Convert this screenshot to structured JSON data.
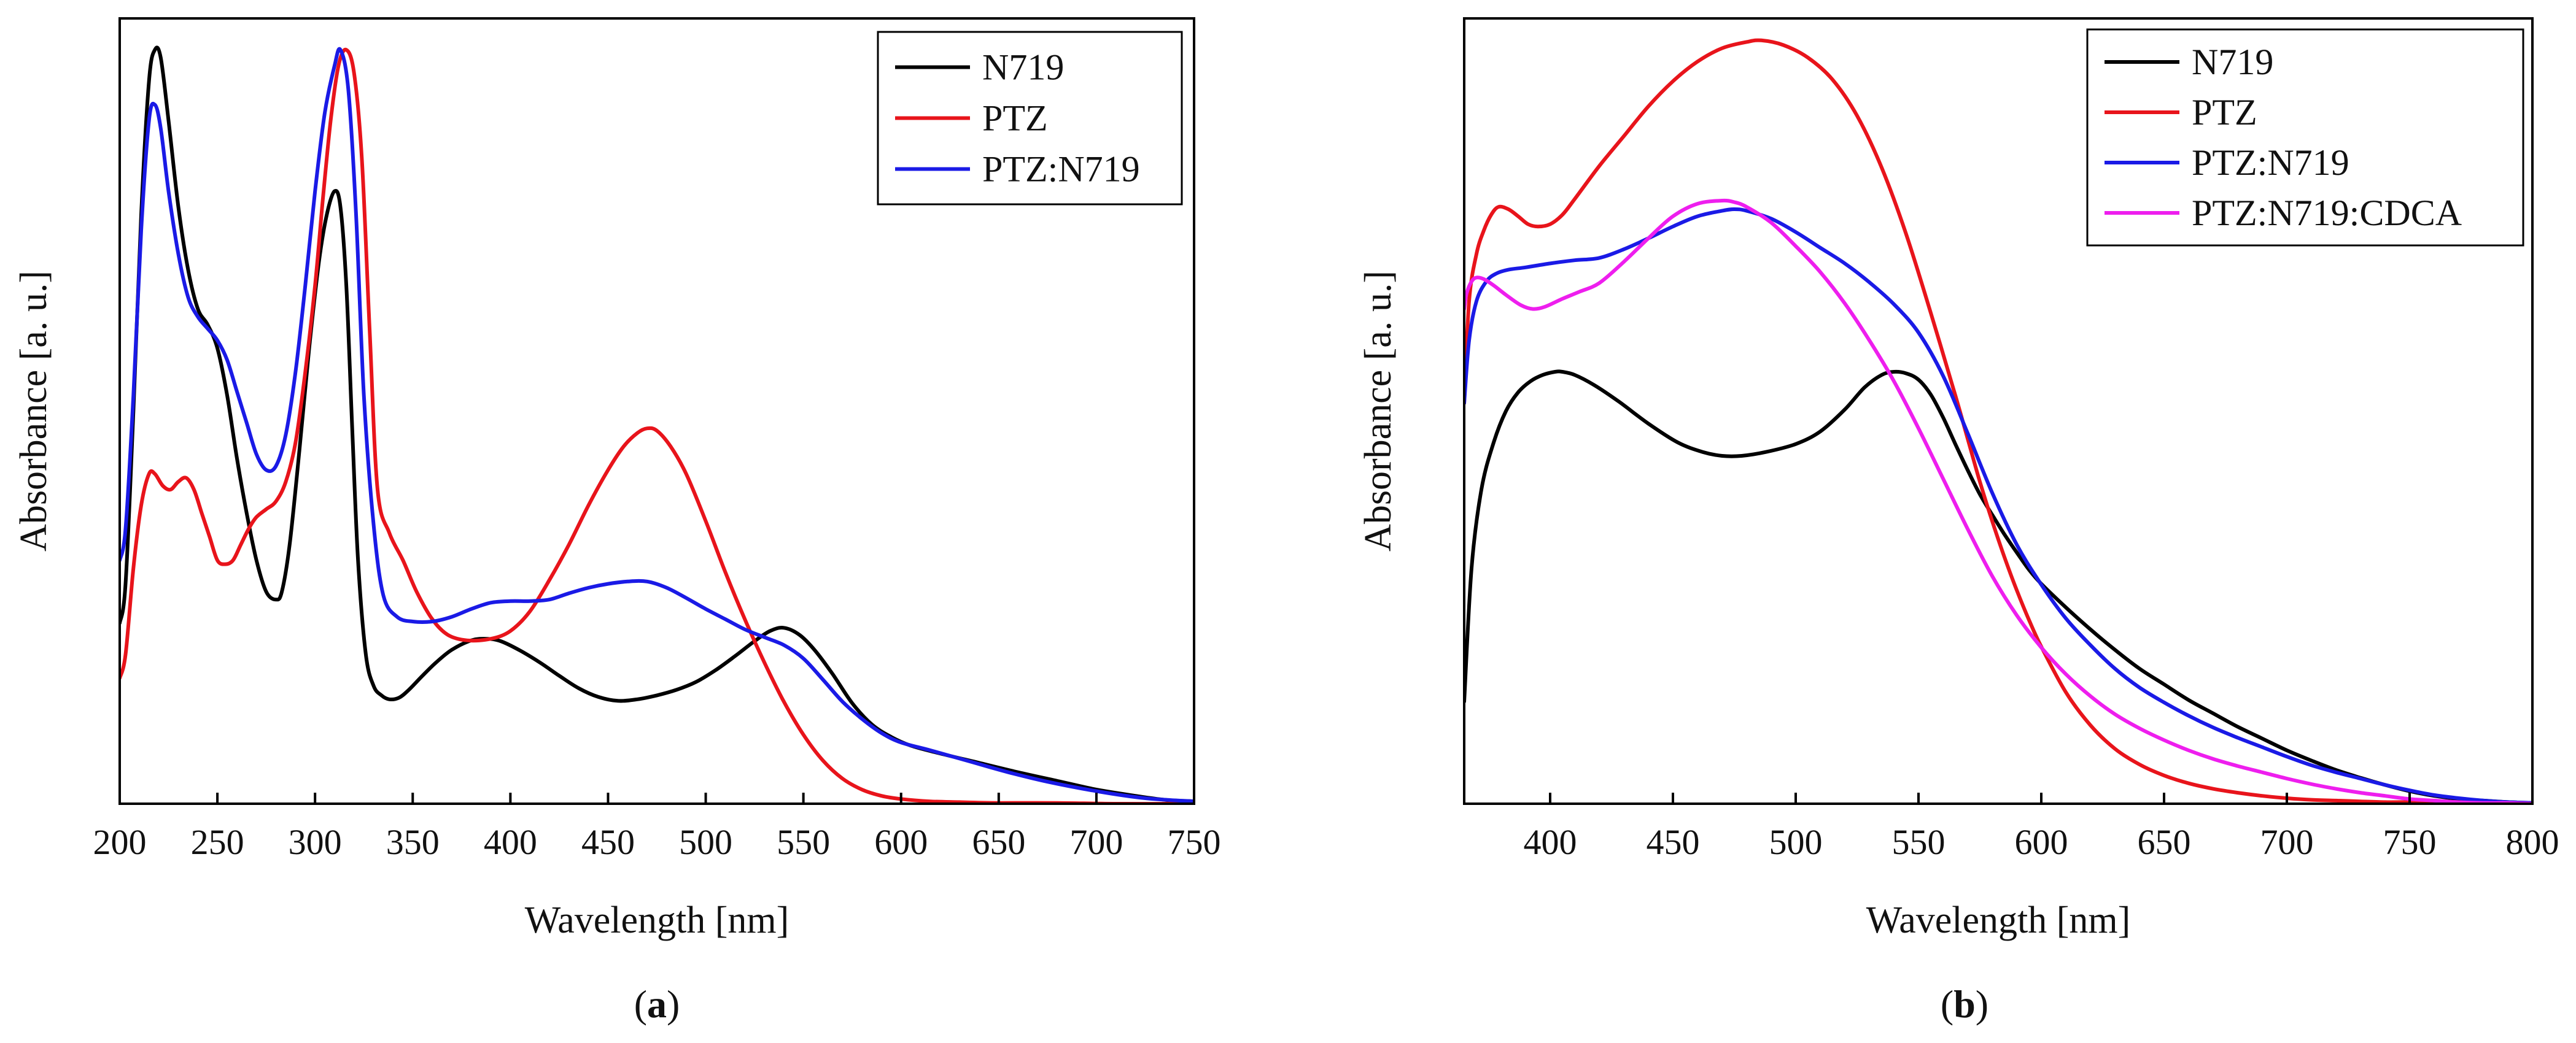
{
  "chart_data": [
    {
      "type": "line",
      "panel_label": "a",
      "title": "",
      "xlabel": "Wavelength [nm]",
      "ylabel": "Absorbance [a. u.]",
      "xlim": [
        200,
        750
      ],
      "ylim": [
        0,
        1.0
      ],
      "xticks": [
        200,
        250,
        300,
        350,
        400,
        450,
        500,
        550,
        600,
        650,
        700,
        750
      ],
      "show_yticks": false,
      "legend_position": "top-right",
      "series": [
        {
          "name": "N719",
          "color": "#000000",
          "x": [
            200,
            203,
            207,
            211,
            215,
            218,
            221,
            225,
            230,
            235,
            240,
            245,
            250,
            255,
            260,
            265,
            270,
            275,
            280,
            283,
            287,
            292,
            297,
            302,
            306,
            310,
            313,
            316,
            319,
            322,
            326,
            330,
            334,
            338,
            343,
            348,
            355,
            362,
            370,
            380,
            388,
            395,
            405,
            415,
            425,
            435,
            445,
            455,
            465,
            475,
            485,
            495,
            505,
            515,
            525,
            533,
            540,
            548,
            556,
            565,
            575,
            585,
            595,
            605,
            620,
            640,
            660,
            680,
            700,
            720,
            735,
            750
          ],
          "y": [
            0.23,
            0.28,
            0.5,
            0.75,
            0.92,
            0.96,
            0.95,
            0.87,
            0.76,
            0.68,
            0.63,
            0.61,
            0.58,
            0.52,
            0.44,
            0.37,
            0.31,
            0.27,
            0.26,
            0.27,
            0.33,
            0.45,
            0.58,
            0.69,
            0.75,
            0.78,
            0.76,
            0.66,
            0.48,
            0.31,
            0.19,
            0.15,
            0.138,
            0.133,
            0.135,
            0.145,
            0.163,
            0.18,
            0.196,
            0.208,
            0.21,
            0.207,
            0.195,
            0.18,
            0.163,
            0.147,
            0.136,
            0.131,
            0.133,
            0.138,
            0.145,
            0.155,
            0.17,
            0.188,
            0.207,
            0.22,
            0.224,
            0.215,
            0.195,
            0.165,
            0.128,
            0.101,
            0.085,
            0.074,
            0.064,
            0.052,
            0.04,
            0.029,
            0.018,
            0.01,
            0.005,
            0.003
          ]
        },
        {
          "name": "PTZ",
          "color": "#e8141b",
          "x": [
            200,
            203,
            207,
            211,
            215,
            218,
            222,
            226,
            230,
            234,
            238,
            242,
            246,
            250,
            254,
            258,
            262,
            266,
            270,
            275,
            280,
            285,
            290,
            295,
            300,
            304,
            308,
            312,
            316,
            320,
            324,
            328,
            332,
            338,
            345,
            352,
            360,
            368,
            378,
            390,
            400,
            410,
            420,
            430,
            440,
            450,
            458,
            465,
            470,
            475,
            482,
            490,
            500,
            510,
            520,
            530,
            540,
            550,
            560,
            570,
            580,
            590,
            600,
            615,
            630,
            650,
            680,
            710,
            750
          ],
          "y": [
            0.16,
            0.19,
            0.3,
            0.38,
            0.42,
            0.42,
            0.405,
            0.4,
            0.41,
            0.415,
            0.4,
            0.37,
            0.34,
            0.31,
            0.305,
            0.31,
            0.33,
            0.35,
            0.365,
            0.375,
            0.385,
            0.41,
            0.46,
            0.55,
            0.66,
            0.77,
            0.87,
            0.94,
            0.96,
            0.93,
            0.82,
            0.6,
            0.4,
            0.345,
            0.31,
            0.27,
            0.235,
            0.215,
            0.208,
            0.21,
            0.22,
            0.245,
            0.285,
            0.33,
            0.38,
            0.425,
            0.455,
            0.472,
            0.478,
            0.475,
            0.455,
            0.42,
            0.36,
            0.295,
            0.235,
            0.18,
            0.13,
            0.088,
            0.055,
            0.032,
            0.018,
            0.01,
            0.006,
            0.003,
            0.002,
            0.001,
            0.001,
            0.0,
            0.0
          ]
        },
        {
          "name": "PTZ:N719",
          "color": "#1a1ae6",
          "x": [
            200,
            203,
            207,
            211,
            215,
            218,
            221,
            225,
            230,
            235,
            240,
            245,
            250,
            255,
            260,
            265,
            270,
            275,
            280,
            285,
            290,
            295,
            300,
            305,
            310,
            313,
            317,
            321,
            325,
            330,
            335,
            342,
            350,
            360,
            370,
            380,
            390,
            400,
            410,
            420,
            430,
            440,
            450,
            460,
            470,
            480,
            490,
            500,
            510,
            520,
            530,
            540,
            550,
            560,
            570,
            580,
            590,
            600,
            615,
            635,
            655,
            675,
            700,
            725,
            750
          ],
          "y": [
            0.31,
            0.35,
            0.52,
            0.73,
            0.87,
            0.89,
            0.86,
            0.78,
            0.7,
            0.645,
            0.62,
            0.605,
            0.59,
            0.565,
            0.525,
            0.485,
            0.445,
            0.425,
            0.43,
            0.47,
            0.55,
            0.66,
            0.78,
            0.88,
            0.94,
            0.96,
            0.91,
            0.75,
            0.52,
            0.355,
            0.265,
            0.238,
            0.232,
            0.232,
            0.238,
            0.248,
            0.256,
            0.258,
            0.258,
            0.26,
            0.268,
            0.275,
            0.28,
            0.283,
            0.283,
            0.275,
            0.262,
            0.248,
            0.235,
            0.222,
            0.212,
            0.202,
            0.185,
            0.158,
            0.13,
            0.108,
            0.09,
            0.078,
            0.068,
            0.054,
            0.04,
            0.028,
            0.016,
            0.007,
            0.003
          ]
        }
      ]
    },
    {
      "type": "line",
      "panel_label": "b",
      "title": "",
      "xlabel": "Wavelength [nm]",
      "ylabel": "Absorbance [a. u.]",
      "xlim": [
        365,
        800
      ],
      "ylim": [
        0,
        1.0
      ],
      "xticks": [
        400,
        450,
        500,
        550,
        600,
        650,
        700,
        750,
        800
      ],
      "show_yticks": false,
      "legend_position": "top-right",
      "series": [
        {
          "name": "N719",
          "color": "#000000",
          "x": [
            365,
            368,
            372,
            377,
            382,
            387,
            392,
            397,
            402,
            405,
            410,
            418,
            428,
            440,
            452,
            462,
            470,
            478,
            488,
            500,
            510,
            520,
            528,
            535,
            540,
            545,
            550,
            555,
            560,
            565,
            570,
            575,
            580,
            585,
            590,
            595,
            600,
            610,
            620,
            630,
            640,
            650,
            660,
            670,
            680,
            690,
            700,
            710,
            720,
            730,
            740,
            750,
            760,
            770,
            780,
            790,
            800
          ],
          "y": [
            0.13,
            0.3,
            0.4,
            0.46,
            0.5,
            0.524,
            0.538,
            0.546,
            0.55,
            0.55,
            0.546,
            0.533,
            0.512,
            0.484,
            0.46,
            0.448,
            0.443,
            0.443,
            0.448,
            0.458,
            0.474,
            0.502,
            0.53,
            0.546,
            0.55,
            0.548,
            0.54,
            0.521,
            0.492,
            0.458,
            0.425,
            0.394,
            0.368,
            0.343,
            0.32,
            0.298,
            0.28,
            0.25,
            0.222,
            0.196,
            0.172,
            0.152,
            0.132,
            0.115,
            0.098,
            0.083,
            0.068,
            0.055,
            0.043,
            0.033,
            0.024,
            0.016,
            0.01,
            0.006,
            0.004,
            0.002,
            0.001
          ]
        },
        {
          "name": "PTZ",
          "color": "#e8141b",
          "x": [
            365,
            367,
            370,
            373,
            376,
            379,
            383,
            387,
            391,
            395,
            400,
            405,
            410,
            420,
            430,
            440,
            450,
            460,
            470,
            480,
            486,
            495,
            505,
            515,
            525,
            535,
            545,
            555,
            565,
            570,
            575,
            580,
            585,
            590,
            595,
            600,
            610,
            620,
            630,
            640,
            650,
            660,
            670,
            680,
            690,
            700,
            710,
            720,
            730,
            740,
            750,
            760,
            770,
            780,
            790,
            800
          ],
          "y": [
            0.51,
            0.64,
            0.7,
            0.73,
            0.75,
            0.76,
            0.757,
            0.748,
            0.738,
            0.735,
            0.738,
            0.75,
            0.77,
            0.812,
            0.85,
            0.888,
            0.92,
            0.945,
            0.962,
            0.97,
            0.972,
            0.966,
            0.95,
            0.922,
            0.876,
            0.81,
            0.725,
            0.625,
            0.52,
            0.465,
            0.41,
            0.36,
            0.314,
            0.272,
            0.234,
            0.2,
            0.142,
            0.1,
            0.07,
            0.05,
            0.036,
            0.026,
            0.019,
            0.014,
            0.01,
            0.007,
            0.005,
            0.004,
            0.003,
            0.002,
            0.002,
            0.001,
            0.001,
            0.001,
            0.0,
            0.0
          ]
        },
        {
          "name": "PTZ:N719",
          "color": "#1a1ae6",
          "x": [
            365,
            367,
            370,
            374,
            378,
            383,
            390,
            400,
            410,
            420,
            430,
            440,
            450,
            460,
            470,
            475,
            480,
            490,
            500,
            510,
            520,
            530,
            540,
            550,
            560,
            570,
            580,
            590,
            600,
            610,
            620,
            630,
            640,
            650,
            660,
            670,
            680,
            690,
            700,
            710,
            720,
            730,
            740,
            750,
            760,
            770,
            780,
            790,
            800
          ],
          "y": [
            0.51,
            0.59,
            0.64,
            0.665,
            0.675,
            0.68,
            0.683,
            0.688,
            0.692,
            0.695,
            0.706,
            0.72,
            0.735,
            0.748,
            0.755,
            0.757,
            0.755,
            0.745,
            0.728,
            0.708,
            0.688,
            0.664,
            0.636,
            0.6,
            0.545,
            0.472,
            0.396,
            0.33,
            0.279,
            0.236,
            0.202,
            0.172,
            0.148,
            0.129,
            0.112,
            0.097,
            0.084,
            0.072,
            0.06,
            0.049,
            0.04,
            0.032,
            0.024,
            0.017,
            0.011,
            0.007,
            0.004,
            0.002,
            0.001
          ]
        },
        {
          "name": "PTZ:N719:CDCA",
          "color": "#ee1eee",
          "x": [
            365,
            366,
            368,
            370,
            373,
            377,
            382,
            388,
            393,
            398,
            405,
            412,
            420,
            430,
            440,
            450,
            460,
            470,
            475,
            480,
            490,
            500,
            510,
            520,
            530,
            540,
            550,
            560,
            570,
            580,
            590,
            600,
            610,
            620,
            630,
            640,
            650,
            660,
            670,
            680,
            690,
            700,
            710,
            720,
            730,
            740,
            750,
            760,
            770,
            780,
            790,
            800
          ],
          "y": [
            0.63,
            0.65,
            0.665,
            0.67,
            0.668,
            0.66,
            0.648,
            0.635,
            0.63,
            0.633,
            0.643,
            0.652,
            0.663,
            0.69,
            0.72,
            0.748,
            0.764,
            0.768,
            0.766,
            0.76,
            0.74,
            0.71,
            0.677,
            0.637,
            0.59,
            0.538,
            0.478,
            0.414,
            0.35,
            0.29,
            0.24,
            0.199,
            0.165,
            0.137,
            0.114,
            0.096,
            0.081,
            0.068,
            0.057,
            0.048,
            0.04,
            0.032,
            0.025,
            0.019,
            0.014,
            0.01,
            0.006,
            0.004,
            0.002,
            0.001,
            0.001,
            0.0
          ]
        }
      ]
    }
  ]
}
